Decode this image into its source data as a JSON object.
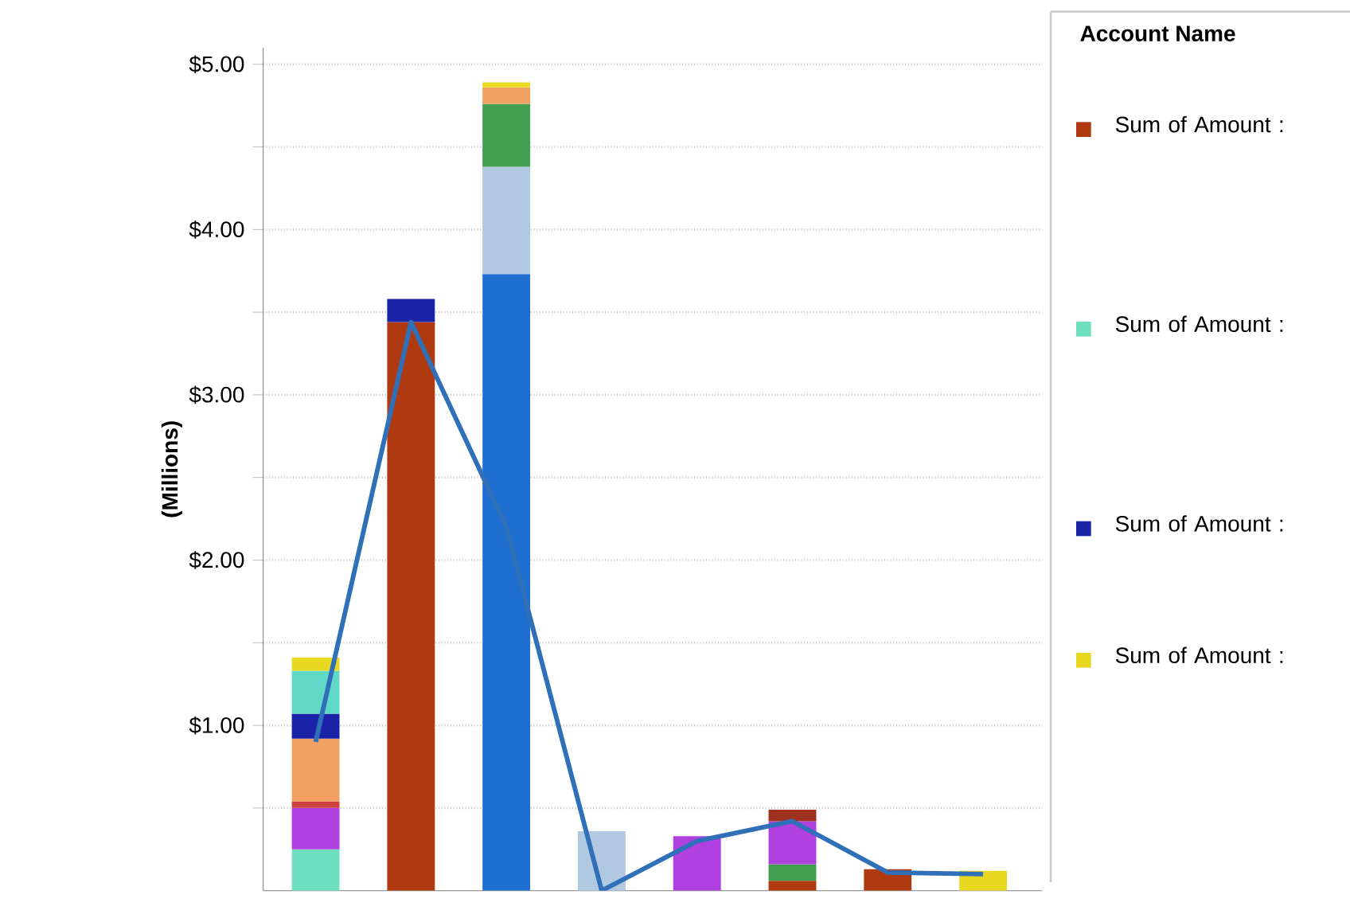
{
  "chart_data": {
    "type": "bar",
    "stacked": true,
    "ylabel": "(Millions)",
    "legend_title": "Account Name",
    "legend": "right",
    "grid": "y",
    "categories": [
      null,
      null,
      null,
      null,
      null,
      null,
      null,
      null
    ],
    "ylim": [
      0,
      5.1
    ],
    "yticks": [
      {
        "value": 0.5,
        "label": null
      },
      {
        "value": 1,
        "label": "$1.00"
      },
      {
        "value": 1.5,
        "label": null
      },
      {
        "value": 2,
        "label": "$2.00"
      },
      {
        "value": 2.5,
        "label": null
      },
      {
        "value": 3,
        "label": "$3.00"
      },
      {
        "value": 3.5,
        "label": null
      },
      {
        "value": 4,
        "label": "$4.00"
      },
      {
        "value": 4.5,
        "label": null
      },
      {
        "value": 5,
        "label": "$5.00"
      }
    ],
    "series": [
      {
        "name": "Sum of Amount :",
        "color": "#b03a10",
        "values": [
          null,
          3.44,
          null,
          null,
          null,
          0.06,
          0.13,
          null
        ]
      },
      {
        "color": "#1e6fd0",
        "values": [
          null,
          null,
          3.73,
          null,
          null,
          null,
          null,
          null
        ]
      },
      {
        "color": "#b0c8e0",
        "values": [
          null,
          null,
          0.65,
          0.36,
          null,
          null,
          null,
          null
        ]
      },
      {
        "name": "Sum of Amount :",
        "color": "#6ee0c0",
        "values": [
          0.25,
          null,
          null,
          null,
          null,
          null,
          null,
          null
        ]
      },
      {
        "color": "#40a050",
        "values": [
          null,
          null,
          0.38,
          null,
          null,
          0.1,
          null,
          null
        ]
      },
      {
        "color": "#b040e0",
        "values": [
          0.25,
          null,
          null,
          null,
          0.33,
          0.26,
          null,
          null
        ]
      },
      {
        "color": "#d04040",
        "values": [
          0.04,
          null,
          null,
          null,
          null,
          null,
          null,
          null
        ]
      },
      {
        "color": "#f0a060",
        "values": [
          0.38,
          null,
          0.1,
          null,
          null,
          null,
          null,
          null
        ]
      },
      {
        "name": "Sum of Amount :",
        "color": "#1a22a8",
        "values": [
          0.15,
          0.14,
          null,
          null,
          null,
          null,
          null,
          null
        ]
      },
      {
        "color": "#60d8c8",
        "values": [
          0.26,
          null,
          null,
          null,
          null,
          null,
          null,
          null
        ]
      },
      {
        "color": "#a03020",
        "values": [
          null,
          null,
          null,
          null,
          null,
          0.07,
          null,
          null
        ]
      },
      {
        "name": "Sum of Amount :",
        "color": "#e8d820",
        "values": [
          0.08,
          null,
          0.03,
          null,
          null,
          null,
          null,
          0.12
        ]
      },
      {
        "type": "line",
        "color": "#3070b8",
        "values": [
          0.9,
          3.44,
          2.2,
          0,
          0.3,
          0.42,
          0.11,
          0.1
        ]
      }
    ]
  }
}
